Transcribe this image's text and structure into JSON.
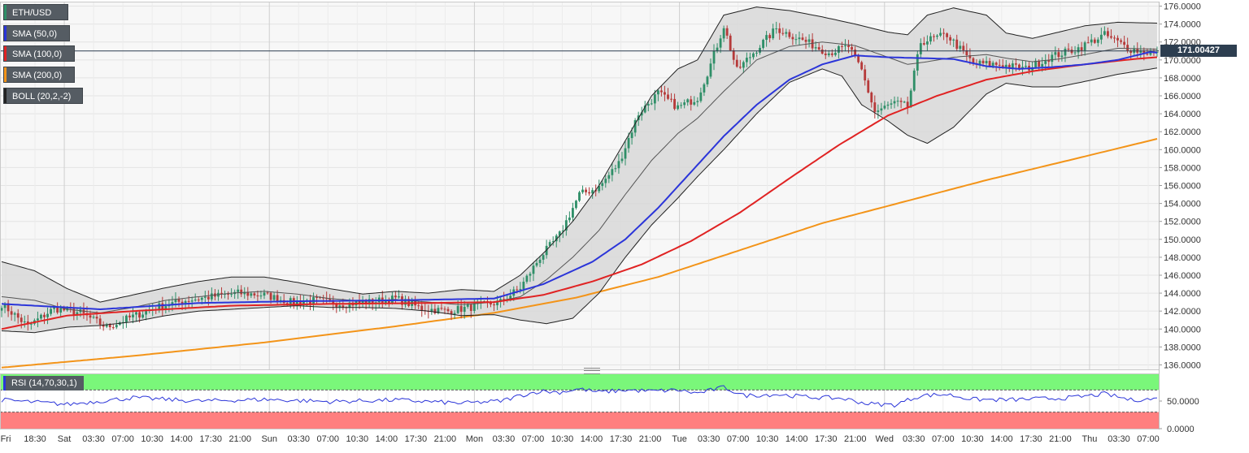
{
  "chart_data": {
    "type": "candlestick",
    "symbol": "ETH/USD",
    "y_ticks": [
      "176.0000",
      "174.0000",
      "172.0000",
      "170.0000",
      "168.0000",
      "166.0000",
      "164.0000",
      "162.0000",
      "160.0000",
      "158.0000",
      "156.0000",
      "154.0000",
      "152.0000",
      "150.0000",
      "148.0000",
      "146.0000",
      "144.0000",
      "142.0000",
      "140.0000",
      "138.0000",
      "136.0000"
    ],
    "ylim": [
      135.5,
      176.5
    ],
    "current_price": 171.00427,
    "current_price_label": "171.00427",
    "x_tick_labels": [
      "Fri",
      "18:30",
      "Sat",
      "03:30",
      "07:00",
      "10:30",
      "14:00",
      "17:30",
      "21:00",
      "Sun",
      "03:30",
      "07:00",
      "10:30",
      "14:00",
      "17:30",
      "21:00",
      "Mon",
      "03:30",
      "07:00",
      "10:30",
      "14:00",
      "17:30",
      "21:00",
      "Tue",
      "03:30",
      "07:00",
      "10:30",
      "14:00",
      "17:30",
      "21:00",
      "Wed",
      "03:30",
      "07:00",
      "10:30",
      "14:00",
      "17:30",
      "21:00",
      "Thu",
      "03:30",
      "07:00"
    ],
    "day_dividers": [
      "Sat",
      "Sun",
      "Mon",
      "Tue",
      "Wed",
      "Thu"
    ],
    "close_anchors": [
      [
        0,
        142.8
      ],
      [
        8,
        140.3
      ],
      [
        16,
        142.3
      ],
      [
        24,
        141.8
      ],
      [
        32,
        140.2
      ],
      [
        40,
        141.4
      ],
      [
        48,
        142.5
      ],
      [
        56,
        143.2
      ],
      [
        64,
        143.6
      ],
      [
        72,
        144.0
      ],
      [
        80,
        143.8
      ],
      [
        88,
        143.0
      ],
      [
        96,
        143.2
      ],
      [
        104,
        142.8
      ],
      [
        112,
        143.0
      ],
      [
        120,
        143.4
      ],
      [
        128,
        142.3
      ],
      [
        136,
        142.0
      ],
      [
        144,
        142.5
      ],
      [
        152,
        143.0
      ],
      [
        158,
        144.6
      ],
      [
        164,
        148.0
      ],
      [
        170,
        150.5
      ],
      [
        176,
        155.0
      ],
      [
        182,
        155.8
      ],
      [
        188,
        158.5
      ],
      [
        194,
        164.0
      ],
      [
        200,
        166.3
      ],
      [
        206,
        164.7
      ],
      [
        212,
        165.8
      ],
      [
        216,
        169.5
      ],
      [
        220,
        173.8
      ],
      [
        224,
        168.8
      ],
      [
        230,
        171.2
      ],
      [
        236,
        173.5
      ],
      [
        244,
        172.2
      ],
      [
        252,
        170.8
      ],
      [
        258,
        171.5
      ],
      [
        262,
        168.8
      ],
      [
        266,
        164.2
      ],
      [
        272,
        165.2
      ],
      [
        276,
        164.8
      ],
      [
        280,
        172.0
      ],
      [
        288,
        172.8
      ],
      [
        296,
        169.6
      ],
      [
        304,
        169.5
      ],
      [
        312,
        169.0
      ],
      [
        320,
        170.4
      ],
      [
        328,
        171.3
      ],
      [
        336,
        172.8
      ],
      [
        344,
        171.2
      ],
      [
        352,
        170.6
      ]
    ],
    "series": [
      {
        "name": "SMA (50,0)",
        "color": "#2b35d9",
        "points": [
          [
            0,
            142.8
          ],
          [
            30,
            142.2
          ],
          [
            60,
            142.9
          ],
          [
            90,
            143.1
          ],
          [
            120,
            143.2
          ],
          [
            150,
            143.4
          ],
          [
            165,
            145.0
          ],
          [
            180,
            147.5
          ],
          [
            190,
            150.0
          ],
          [
            200,
            153.5
          ],
          [
            210,
            157.5
          ],
          [
            220,
            161.5
          ],
          [
            230,
            165.0
          ],
          [
            240,
            167.8
          ],
          [
            250,
            169.5
          ],
          [
            260,
            170.5
          ],
          [
            270,
            170.3
          ],
          [
            280,
            170.2
          ],
          [
            290,
            170.1
          ],
          [
            300,
            169.3
          ],
          [
            310,
            169.0
          ],
          [
            320,
            169.2
          ],
          [
            330,
            169.5
          ],
          [
            340,
            170.0
          ],
          [
            350,
            170.9
          ],
          [
            352,
            170.8
          ]
        ]
      },
      {
        "name": "SMA (100,0)",
        "color": "#e02323",
        "points": [
          [
            0,
            140.0
          ],
          [
            20,
            141.5
          ],
          [
            40,
            142.0
          ],
          [
            70,
            142.6
          ],
          [
            100,
            142.8
          ],
          [
            130,
            142.9
          ],
          [
            150,
            143.0
          ],
          [
            165,
            143.8
          ],
          [
            180,
            145.3
          ],
          [
            195,
            147.2
          ],
          [
            210,
            149.8
          ],
          [
            225,
            153.0
          ],
          [
            240,
            156.8
          ],
          [
            255,
            160.5
          ],
          [
            270,
            163.8
          ],
          [
            285,
            166.0
          ],
          [
            300,
            167.8
          ],
          [
            315,
            168.8
          ],
          [
            330,
            169.5
          ],
          [
            345,
            170.1
          ],
          [
            352,
            170.3
          ]
        ]
      },
      {
        "name": "SMA (200,0)",
        "color": "#f39419",
        "points": [
          [
            0,
            135.7
          ],
          [
            40,
            137.0
          ],
          [
            80,
            138.5
          ],
          [
            120,
            140.3
          ],
          [
            150,
            141.8
          ],
          [
            175,
            143.5
          ],
          [
            200,
            145.8
          ],
          [
            225,
            148.8
          ],
          [
            250,
            151.8
          ],
          [
            275,
            154.2
          ],
          [
            300,
            156.6
          ],
          [
            325,
            158.8
          ],
          [
            352,
            161.2
          ]
        ]
      },
      {
        "name": "BOLL (20,2,-2)",
        "color": "#222222",
        "upper": [
          [
            0,
            147.5
          ],
          [
            10,
            146.5
          ],
          [
            20,
            144.5
          ],
          [
            30,
            143.0
          ],
          [
            40,
            143.8
          ],
          [
            50,
            144.6
          ],
          [
            60,
            145.3
          ],
          [
            70,
            145.8
          ],
          [
            80,
            145.8
          ],
          [
            90,
            145.2
          ],
          [
            100,
            144.5
          ],
          [
            110,
            143.9
          ],
          [
            120,
            144.2
          ],
          [
            130,
            144.0
          ],
          [
            140,
            144.4
          ],
          [
            150,
            144.2
          ],
          [
            158,
            146.0
          ],
          [
            166,
            148.8
          ],
          [
            174,
            152.0
          ],
          [
            182,
            156.0
          ],
          [
            190,
            161.0
          ],
          [
            198,
            166.0
          ],
          [
            206,
            169.0
          ],
          [
            212,
            170.0
          ],
          [
            220,
            175.0
          ],
          [
            230,
            175.9
          ],
          [
            240,
            175.5
          ],
          [
            250,
            174.8
          ],
          [
            260,
            174.0
          ],
          [
            270,
            173.1
          ],
          [
            276,
            172.8
          ],
          [
            282,
            175.0
          ],
          [
            290,
            175.8
          ],
          [
            300,
            175.0
          ],
          [
            306,
            173.0
          ],
          [
            314,
            172.4
          ],
          [
            322,
            173.1
          ],
          [
            330,
            173.8
          ],
          [
            340,
            174.2
          ],
          [
            352,
            174.1
          ]
        ],
        "middle": [
          [
            0,
            143.6
          ],
          [
            10,
            143.2
          ],
          [
            20,
            142.2
          ],
          [
            30,
            141.8
          ],
          [
            40,
            142.4
          ],
          [
            50,
            143.2
          ],
          [
            60,
            143.6
          ],
          [
            70,
            144.0
          ],
          [
            80,
            144.2
          ],
          [
            90,
            143.9
          ],
          [
            100,
            143.4
          ],
          [
            110,
            143.1
          ],
          [
            120,
            143.3
          ],
          [
            130,
            143.0
          ],
          [
            140,
            142.7
          ],
          [
            150,
            143.0
          ],
          [
            158,
            143.6
          ],
          [
            166,
            145.5
          ],
          [
            174,
            148.0
          ],
          [
            182,
            151.0
          ],
          [
            190,
            155.0
          ],
          [
            198,
            158.8
          ],
          [
            206,
            161.8
          ],
          [
            212,
            163.5
          ],
          [
            220,
            166.5
          ],
          [
            230,
            170.0
          ],
          [
            240,
            171.5
          ],
          [
            250,
            172.0
          ],
          [
            260,
            171.6
          ],
          [
            270,
            170.3
          ],
          [
            276,
            169.5
          ],
          [
            282,
            169.8
          ],
          [
            290,
            170.3
          ],
          [
            300,
            170.6
          ],
          [
            306,
            170.2
          ],
          [
            314,
            169.8
          ],
          [
            322,
            170.1
          ],
          [
            330,
            170.6
          ],
          [
            340,
            171.3
          ],
          [
            352,
            171.2
          ]
        ],
        "lower": [
          [
            0,
            139.8
          ],
          [
            10,
            139.6
          ],
          [
            20,
            140.2
          ],
          [
            30,
            140.4
          ],
          [
            40,
            140.8
          ],
          [
            50,
            141.5
          ],
          [
            60,
            142.0
          ],
          [
            70,
            142.2
          ],
          [
            80,
            142.4
          ],
          [
            90,
            142.6
          ],
          [
            100,
            142.4
          ],
          [
            110,
            142.4
          ],
          [
            120,
            142.3
          ],
          [
            130,
            142.0
          ],
          [
            140,
            141.5
          ],
          [
            150,
            141.6
          ],
          [
            158,
            141.0
          ],
          [
            166,
            140.6
          ],
          [
            174,
            141.2
          ],
          [
            182,
            144.0
          ],
          [
            190,
            148.0
          ],
          [
            198,
            151.6
          ],
          [
            206,
            154.6
          ],
          [
            212,
            157.0
          ],
          [
            220,
            160.0
          ],
          [
            230,
            164.0
          ],
          [
            240,
            167.5
          ],
          [
            250,
            169.0
          ],
          [
            256,
            168.2
          ],
          [
            262,
            165.0
          ],
          [
            270,
            163.2
          ],
          [
            276,
            161.6
          ],
          [
            282,
            160.7
          ],
          [
            290,
            162.5
          ],
          [
            300,
            166.2
          ],
          [
            306,
            167.4
          ],
          [
            314,
            167.0
          ],
          [
            322,
            167.0
          ],
          [
            330,
            167.6
          ],
          [
            340,
            168.4
          ],
          [
            352,
            169.1
          ]
        ]
      }
    ],
    "rsi": {
      "label": "RSI (14,70,30,1)",
      "levels": [
        70,
        30
      ],
      "y_ticks": [
        "50.0000",
        "0.0000"
      ],
      "ylim": [
        0,
        100
      ],
      "color": "#2b35d9",
      "anchors": [
        [
          0,
          52
        ],
        [
          20,
          44
        ],
        [
          40,
          56
        ],
        [
          60,
          50
        ],
        [
          80,
          53
        ],
        [
          100,
          49
        ],
        [
          120,
          52
        ],
        [
          140,
          46
        ],
        [
          152,
          50
        ],
        [
          158,
          60
        ],
        [
          164,
          68
        ],
        [
          170,
          66
        ],
        [
          176,
          72
        ],
        [
          182,
          66
        ],
        [
          190,
          70
        ],
        [
          198,
          68
        ],
        [
          206,
          70
        ],
        [
          212,
          64
        ],
        [
          220,
          75
        ],
        [
          226,
          60
        ],
        [
          236,
          62
        ],
        [
          246,
          57
        ],
        [
          256,
          55
        ],
        [
          264,
          45
        ],
        [
          272,
          43
        ],
        [
          280,
          60
        ],
        [
          288,
          62
        ],
        [
          296,
          53
        ],
        [
          306,
          52
        ],
        [
          316,
          54
        ],
        [
          326,
          56
        ],
        [
          336,
          63
        ],
        [
          344,
          52
        ],
        [
          352,
          54
        ]
      ]
    },
    "colors": {
      "up": "#2f8f68",
      "down": "#b63a3a",
      "band_fill": "#d8d8d8",
      "price_line": "#2d3e50",
      "rsi_overbought": "#7af77a",
      "rsi_oversold": "#ff7f7f"
    },
    "grid": true
  },
  "legend": [
    {
      "label": "ETH/USD",
      "color": "#2f8f68"
    },
    {
      "label": "SMA (50,0)",
      "color": "#2b35d9"
    },
    {
      "label": "SMA (100,0)",
      "color": "#e02323"
    },
    {
      "label": "SMA (200,0)",
      "color": "#f39419"
    },
    {
      "label": "BOLL (20,2,-2)",
      "color": "#222222"
    }
  ]
}
